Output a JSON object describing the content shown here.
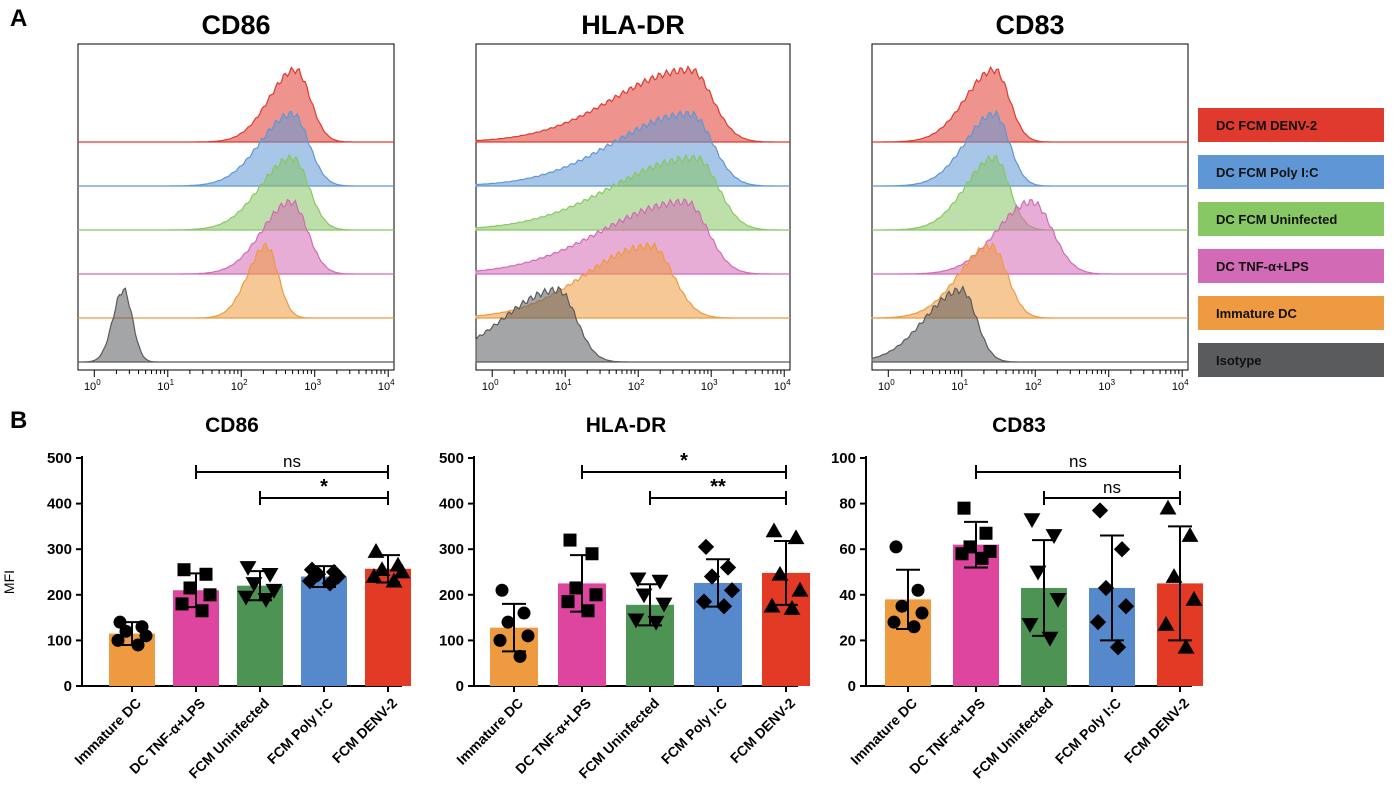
{
  "figure": {
    "panel_a_label": "A",
    "panel_b_label": "B"
  },
  "legend": [
    {
      "label": "DC FCM DENV-2",
      "color": "#E03A2F"
    },
    {
      "label": "DC FCM Poly I:C",
      "color": "#5F97D6"
    },
    {
      "label": "DC FCM Uninfected",
      "color": "#87C764"
    },
    {
      "label": "DC TNF-α+LPS",
      "color": "#D36AB6"
    },
    {
      "label": "Immature DC",
      "color": "#EE9A40"
    },
    {
      "label": "Isotype",
      "color": "#5A5B5C"
    }
  ],
  "histogram_axis": {
    "ticks": [
      {
        "base": "10",
        "exp": "0"
      },
      {
        "base": "10",
        "exp": "1"
      },
      {
        "base": "10",
        "exp": "2"
      },
      {
        "base": "10",
        "exp": "3"
      },
      {
        "base": "10",
        "exp": "4"
      }
    ]
  },
  "chart_data": [
    {
      "type": "histogram",
      "title": "CD86",
      "xscale": "log",
      "xlim": [
        0.6,
        12000
      ],
      "tracks": [
        {
          "name": "DC FCM DENV-2",
          "color": "#E03A2F",
          "peak": 550,
          "sd": 0.2,
          "skew": 1.8
        },
        {
          "name": "DC FCM Poly I:C",
          "color": "#5F97D6",
          "peak": 500,
          "sd": 0.22,
          "skew": 2.0
        },
        {
          "name": "DC FCM Uninfected",
          "color": "#87C764",
          "peak": 500,
          "sd": 0.22,
          "skew": 2.0
        },
        {
          "name": "DC TNF-α+LPS",
          "color": "#D36AB6",
          "peak": 480,
          "sd": 0.22,
          "skew": 1.8
        },
        {
          "name": "Immature DC",
          "color": "#EE9A40",
          "peak": 220,
          "sd": 0.16,
          "skew": 1.6
        },
        {
          "name": "Isotype",
          "color": "#5A5B5C",
          "peak": 2.5,
          "sd": 0.12,
          "skew": 1.2
        }
      ]
    },
    {
      "type": "histogram",
      "title": "HLA-DR",
      "xscale": "log",
      "xlim": [
        0.6,
        12000
      ],
      "tracks": [
        {
          "name": "DC FCM DENV-2",
          "color": "#E03A2F",
          "peak": 520,
          "sd": 0.3,
          "skew": 3.5
        },
        {
          "name": "DC FCM Poly I:C",
          "color": "#5F97D6",
          "peak": 520,
          "sd": 0.3,
          "skew": 3.5
        },
        {
          "name": "DC FCM Uninfected",
          "color": "#87C764",
          "peak": 620,
          "sd": 0.3,
          "skew": 3.8
        },
        {
          "name": "DC TNF-α+LPS",
          "color": "#D36AB6",
          "peak": 450,
          "sd": 0.3,
          "skew": 3.8
        },
        {
          "name": "Immature DC",
          "color": "#EE9A40",
          "peak": 150,
          "sd": 0.3,
          "skew": 3.0
        },
        {
          "name": "Isotype",
          "color": "#5A5B5C",
          "peak": 8,
          "sd": 0.25,
          "skew": 3.0
        }
      ]
    },
    {
      "type": "histogram",
      "title": "CD83",
      "xscale": "log",
      "xlim": [
        0.6,
        12000
      ],
      "tracks": [
        {
          "name": "DC FCM DENV-2",
          "color": "#E03A2F",
          "peak": 28,
          "sd": 0.2,
          "skew": 2.0
        },
        {
          "name": "DC FCM Poly I:C",
          "color": "#5F97D6",
          "peak": 28,
          "sd": 0.2,
          "skew": 2.0
        },
        {
          "name": "DC FCM Uninfected",
          "color": "#87C764",
          "peak": 28,
          "sd": 0.2,
          "skew": 2.0
        },
        {
          "name": "DC TNF-α+LPS",
          "color": "#D36AB6",
          "peak": 90,
          "sd": 0.28,
          "skew": 1.7
        },
        {
          "name": "Immature DC",
          "color": "#EE9A40",
          "peak": 25,
          "sd": 0.22,
          "skew": 2.0
        },
        {
          "name": "Isotype",
          "color": "#5A5B5C",
          "peak": 10,
          "sd": 0.2,
          "skew": 2.5
        }
      ]
    },
    {
      "type": "bar",
      "title": "CD86",
      "ylabel": "MFI",
      "ylim": [
        0,
        500
      ],
      "yticks": [
        0,
        100,
        200,
        300,
        400,
        500
      ],
      "categories": [
        "Immature DC",
        "DC TNF-α+LPS",
        "FCM Uninfected",
        "FCM Poly I:C",
        "FCM DENV-2"
      ],
      "colors": [
        "#EE9A40",
        "#DE459E",
        "#4C9354",
        "#5689CC",
        "#E33A25"
      ],
      "markers": [
        "circle",
        "square",
        "triangle-down",
        "diamond",
        "triangle-up"
      ],
      "values": [
        115,
        210,
        220,
        240,
        257
      ],
      "errors": [
        25,
        37,
        32,
        23,
        30
      ],
      "points": [
        [
          140,
          130,
          120,
          110,
          100,
          90
        ],
        [
          255,
          245,
          215,
          200,
          180,
          165
        ],
        [
          260,
          245,
          225,
          210,
          195,
          190
        ],
        [
          255,
          250,
          245,
          240,
          230,
          225
        ],
        [
          295,
          265,
          255,
          250,
          240,
          230
        ]
      ],
      "significance": [
        {
          "from": 1,
          "to": 4,
          "label": "ns",
          "level": 0
        },
        {
          "from": 2,
          "to": 4,
          "label": "*",
          "level": 1
        }
      ]
    },
    {
      "type": "bar",
      "title": "HLA-DR",
      "ylabel": "",
      "ylim": [
        0,
        500
      ],
      "yticks": [
        0,
        100,
        200,
        300,
        400,
        500
      ],
      "categories": [
        "Immature DC",
        "DC TNF-α+LPS",
        "FCM Uninfected",
        "FCM Poly I:C",
        "FCM DENV-2"
      ],
      "colors": [
        "#EE9A40",
        "#DE459E",
        "#4C9354",
        "#5689CC",
        "#E33A25"
      ],
      "markers": [
        "circle",
        "square",
        "triangle-down",
        "diamond",
        "triangle-up"
      ],
      "values": [
        128,
        225,
        178,
        226,
        248
      ],
      "errors": [
        52,
        62,
        45,
        52,
        70
      ],
      "points": [
        [
          210,
          160,
          140,
          110,
          100,
          65
        ],
        [
          320,
          290,
          215,
          200,
          185,
          165
        ],
        [
          235,
          230,
          200,
          180,
          145,
          140
        ],
        [
          305,
          260,
          240,
          210,
          185,
          175
        ],
        [
          340,
          325,
          245,
          210,
          175,
          170
        ]
      ],
      "significance": [
        {
          "from": 1,
          "to": 4,
          "label": "*",
          "level": 0
        },
        {
          "from": 2,
          "to": 4,
          "label": "**",
          "level": 1
        }
      ]
    },
    {
      "type": "bar",
      "title": "CD83",
      "ylabel": "",
      "ylim": [
        0,
        100
      ],
      "yticks": [
        0,
        20,
        40,
        60,
        80,
        100
      ],
      "categories": [
        "Immature DC",
        "DC TNF-α+LPS",
        "FCM Uninfected",
        "FCM Poly I:C",
        "FCM DENV-2"
      ],
      "colors": [
        "#EE9A40",
        "#DE459E",
        "#4C9354",
        "#5689CC",
        "#E33A25"
      ],
      "markers": [
        "circle",
        "square",
        "triangle-down",
        "diamond",
        "triangle-up"
      ],
      "values": [
        38,
        62,
        43,
        43,
        45
      ],
      "errors": [
        13,
        10,
        21,
        23,
        25
      ],
      "points": [
        [
          61,
          42,
          35,
          32,
          28,
          26
        ],
        [
          78,
          67,
          61,
          59,
          58,
          56
        ],
        [
          73,
          66,
          50,
          38,
          27,
          21
        ],
        [
          77,
          60,
          43,
          35,
          28,
          17
        ],
        [
          78,
          66,
          48,
          38,
          27,
          17
        ]
      ],
      "significance": [
        {
          "from": 1,
          "to": 4,
          "label": "ns",
          "level": 0
        },
        {
          "from": 2,
          "to": 4,
          "label": "ns",
          "level": 1
        }
      ]
    }
  ]
}
